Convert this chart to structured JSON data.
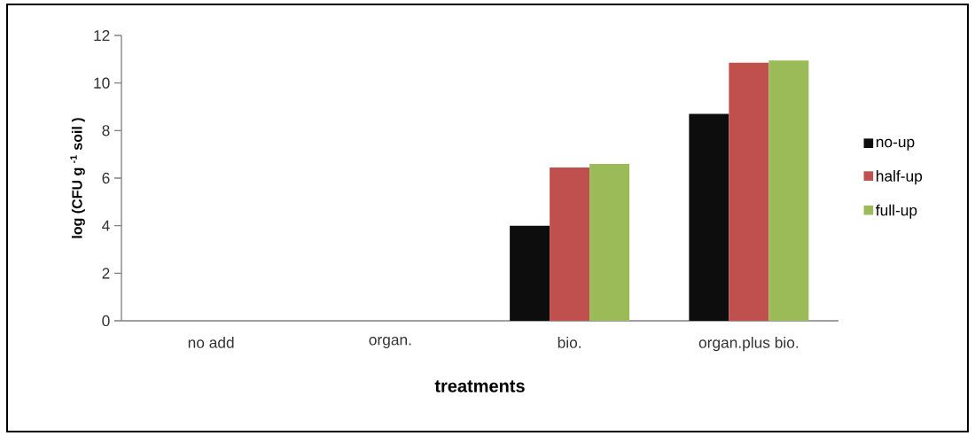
{
  "chart_data": {
    "type": "bar",
    "xlabel": "treatments",
    "ylabel": "log (CFU g $^{-1}$ soil )",
    "categories": [
      "no add",
      "organ.",
      "bio.",
      "organ.plus bio."
    ],
    "series": [
      {
        "name": "no-up",
        "color": "#0d0d0d",
        "values": [
          0,
          0,
          4.0,
          8.7
        ]
      },
      {
        "name": "half-up",
        "color": "#c0504d",
        "values": [
          0,
          0,
          6.45,
          10.85
        ]
      },
      {
        "name": "full-up",
        "color": "#9bbb59",
        "values": [
          0,
          0,
          6.6,
          10.95
        ]
      }
    ],
    "ylim": [
      0,
      12
    ],
    "yticks": [
      0,
      2,
      4,
      6,
      8,
      10,
      12
    ],
    "grid": false,
    "legend": "right"
  }
}
